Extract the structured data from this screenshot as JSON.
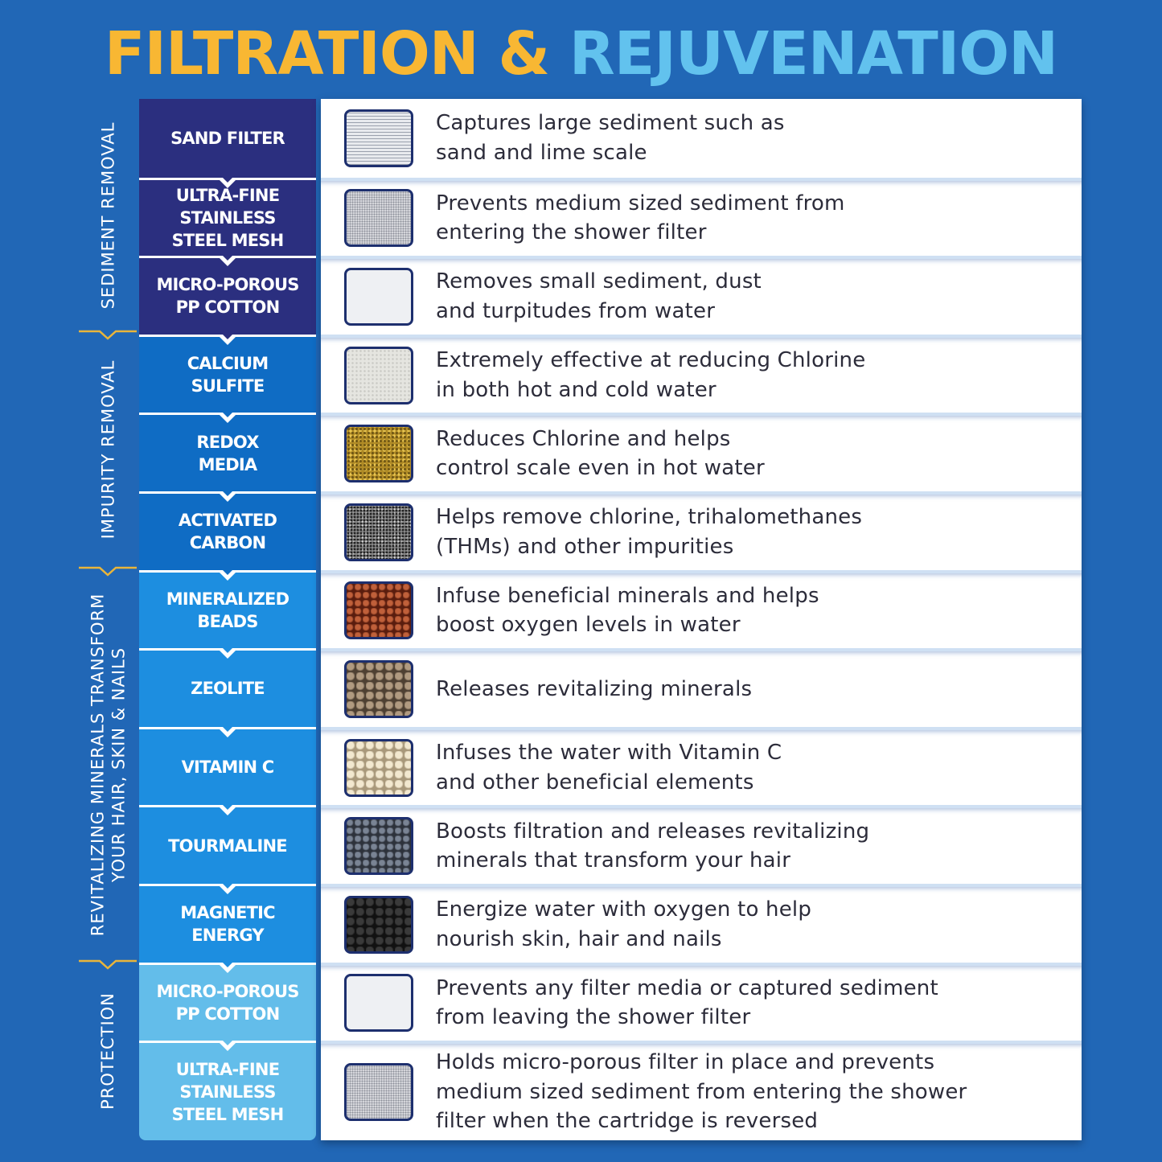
{
  "title": {
    "part1": "FILTRATION &",
    "part2": "REJUVENATION",
    "color1": "#f8b733",
    "color2": "#62c2ee"
  },
  "groups": [
    {
      "label": "SEDIMENT REMOVAL",
      "color": "#2b2f7f"
    },
    {
      "label": "IMPURITY REMOVAL",
      "color": "#0f6cc4"
    },
    {
      "label": "REVITALIZING MINERALS TRANSFORM\nYOUR HAIR, SKIN & NAILS",
      "color": "#1d8ee0"
    },
    {
      "label": "PROTECTION",
      "color": "#63bdea"
    }
  ],
  "layers": [
    {
      "name": "SAND FILTER",
      "group": 0,
      "swatch": "mesh-grid",
      "description": "Captures large sediment such as\nsand and lime scale"
    },
    {
      "name": "ULTRA-FINE\nSTAINLESS\nSTEEL MESH",
      "group": 0,
      "swatch": "fine-mesh",
      "description": "Prevents medium sized sediment from\nentering the shower filter"
    },
    {
      "name": "MICRO-POROUS\nPP COTTON",
      "group": 0,
      "swatch": "cotton",
      "description": "Removes small sediment, dust\nand turpitudes from water"
    },
    {
      "name": "CALCIUM\nSULFITE",
      "group": 1,
      "swatch": "calcium",
      "description": "Extremely effective at reducing Chlorine\nin both hot and cold water"
    },
    {
      "name": "REDOX\nMEDIA",
      "group": 1,
      "swatch": "redox",
      "description": "Reduces Chlorine and helps\ncontrol scale even in hot water"
    },
    {
      "name": "ACTIVATED\nCARBON",
      "group": 1,
      "swatch": "carbon",
      "description": "Helps remove chlorine, trihalomethanes\n(THMs) and other impurities"
    },
    {
      "name": "MINERALIZED\nBEADS",
      "group": 2,
      "swatch": "red-beads",
      "description": "Infuse beneficial minerals and helps\nboost oxygen levels in water"
    },
    {
      "name": "ZEOLITE",
      "group": 2,
      "swatch": "zeolite",
      "description": "Releases revitalizing minerals"
    },
    {
      "name": "VITAMIN C",
      "group": 2,
      "swatch": "vitamin-c",
      "description": "Infuses the water with Vitamin C\nand other beneficial elements"
    },
    {
      "name": "TOURMALINE",
      "group": 2,
      "swatch": "tourmaline",
      "description": "Boosts filtration and releases revitalizing\nminerals that transform your hair"
    },
    {
      "name": "MAGNETIC\nENERGY",
      "group": 2,
      "swatch": "magnetic",
      "description": "Energize water with oxygen to help\nnourish skin, hair and nails"
    },
    {
      "name": "MICRO-POROUS\nPP COTTON",
      "group": 3,
      "swatch": "cotton",
      "description": "Prevents any filter media or captured sediment\nfrom leaving the shower filter"
    },
    {
      "name": "ULTRA-FINE\nSTAINLESS\nSTEEL MESH",
      "group": 3,
      "swatch": "fine-mesh",
      "description": "Holds micro-porous filter in place and prevents\nmedium sized sediment from entering the shower\nfilter when the cartridge is reversed"
    }
  ],
  "accent_bracket": "#e9b53a"
}
